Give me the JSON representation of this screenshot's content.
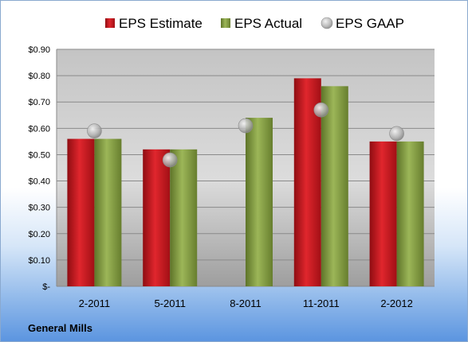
{
  "chart_data": {
    "type": "bar",
    "categories": [
      "2-2011",
      "5-2011",
      "8-2011",
      "11-2011",
      "2-2012"
    ],
    "series": [
      {
        "name": "EPS Estimate",
        "type": "bar",
        "values": [
          0.56,
          0.52,
          null,
          0.79,
          0.55
        ]
      },
      {
        "name": "EPS Actual",
        "type": "bar",
        "values": [
          0.56,
          0.52,
          0.64,
          0.76,
          0.55
        ]
      },
      {
        "name": "EPS GAAP",
        "type": "scatter",
        "values": [
          0.59,
          0.48,
          0.61,
          0.67,
          0.58
        ]
      }
    ],
    "ylim": [
      0,
      0.9
    ],
    "yticks": [
      0,
      0.1,
      0.2,
      0.3,
      0.4,
      0.5,
      0.6,
      0.7,
      0.8,
      0.9
    ],
    "ytick_labels": [
      "$-",
      "$0.10",
      "$0.20",
      "$0.30",
      "$0.40",
      "$0.50",
      "$0.60",
      "$0.70",
      "$0.80",
      "$0.90"
    ],
    "legend_position": "top",
    "grid": true,
    "company": "General Mills",
    "colors": {
      "estimate": "#c8161d",
      "actual": "#7f9a3a",
      "gaap": "#a8a8a8"
    }
  }
}
